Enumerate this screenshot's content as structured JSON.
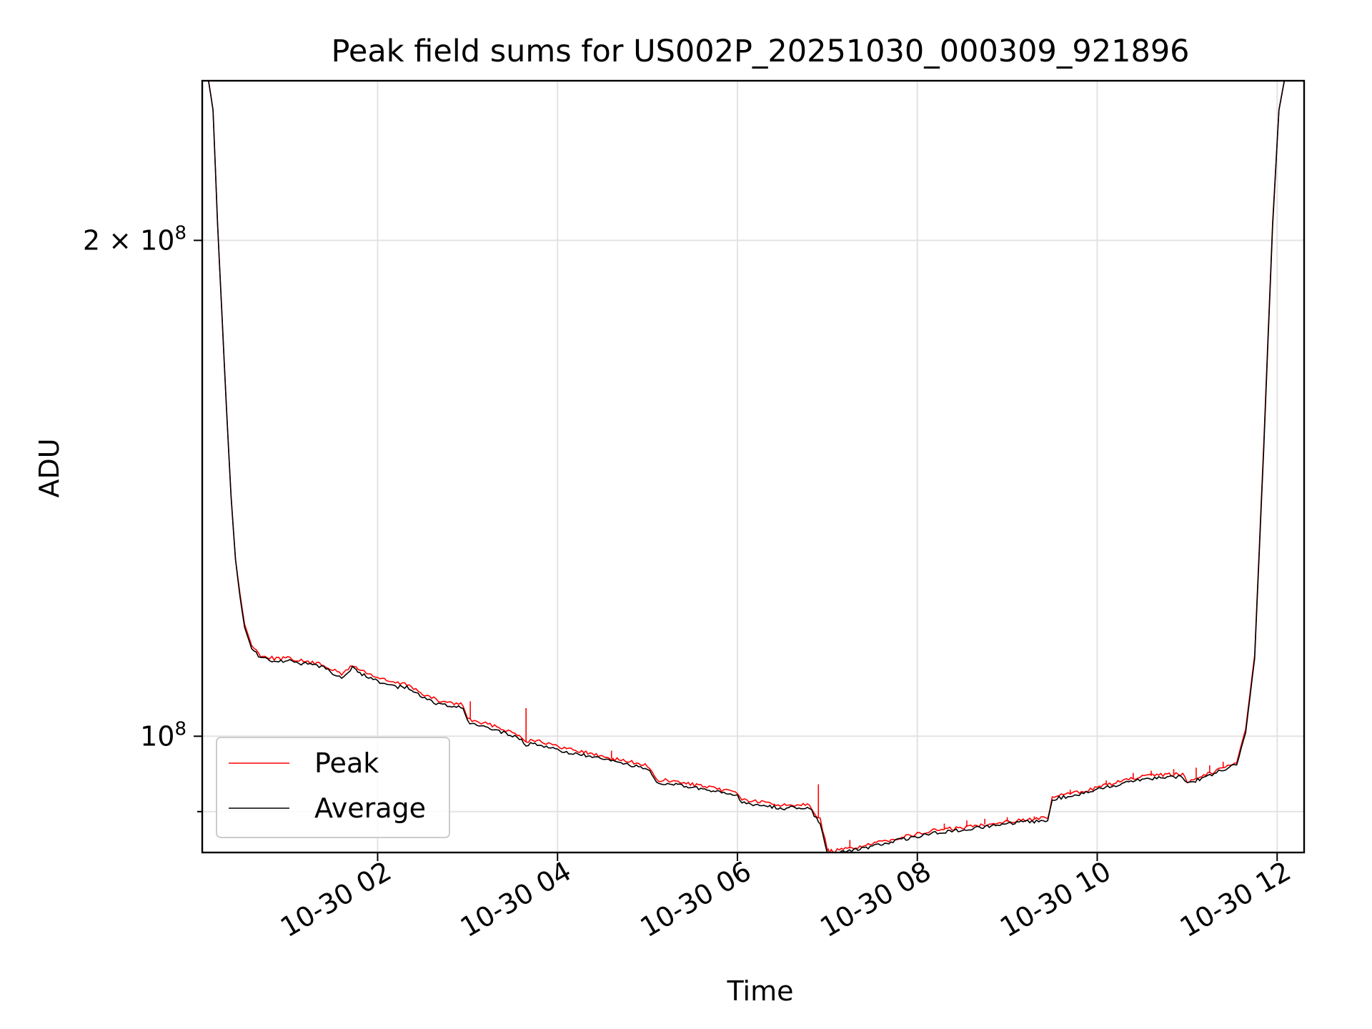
{
  "chart_data": {
    "type": "line",
    "title": "Peak field sums for US002P_20251030_000309_921896",
    "xlabel": "Time",
    "ylabel": "ADU",
    "yscale": "log",
    "xlim_hours": [
      0.05,
      12.3
    ],
    "ylim": [
      85000000,
      250000000
    ],
    "grid": true,
    "legend_position": "lower-left",
    "x_ticks": [
      {
        "hour": 2,
        "label": "10-30 02"
      },
      {
        "hour": 4,
        "label": "10-30 04"
      },
      {
        "hour": 6,
        "label": "10-30 06"
      },
      {
        "hour": 8,
        "label": "10-30 08"
      },
      {
        "hour": 10,
        "label": "10-30 10"
      },
      {
        "hour": 12,
        "label": "10-30 12"
      }
    ],
    "y_major_ticks": [
      {
        "value": 100000000,
        "base": "10",
        "exp": "8",
        "coef": ""
      },
      {
        "value": 200000000,
        "base": "10",
        "exp": "8",
        "coef": "2 × "
      }
    ],
    "y_minor_ticks": [
      90000000
    ],
    "series": [
      {
        "name": "Peak",
        "color": "#ff0000",
        "x_hours": [
          0.12,
          0.17,
          0.22,
          0.27,
          0.32,
          0.37,
          0.42,
          0.47,
          0.52,
          0.6,
          0.7,
          0.85,
          1.0,
          1.2,
          1.4,
          1.6,
          1.72,
          1.78,
          1.85,
          2.0,
          2.2,
          2.35,
          2.5,
          2.7,
          2.95,
          3.0,
          3.1,
          3.3,
          3.5,
          3.6,
          3.65,
          3.7,
          3.8,
          4.0,
          4.2,
          4.5,
          4.8,
          5.0,
          5.1,
          5.2,
          5.5,
          5.8,
          6.0,
          6.05,
          6.2,
          6.5,
          6.8,
          6.88,
          6.92,
          7.0,
          7.02,
          7.2,
          7.5,
          7.8,
          8.0,
          8.2,
          8.5,
          8.8,
          9.2,
          9.45,
          9.5,
          9.55,
          9.8,
          10.0,
          10.3,
          10.5,
          10.8,
          10.95,
          11.0,
          11.3,
          11.55,
          11.65,
          11.75,
          11.85,
          11.95,
          12.02,
          12.08,
          12.13
        ],
        "y": [
          250000000,
          240000000,
          205000000,
          180000000,
          158000000,
          140000000,
          128000000,
          122000000,
          117000000,
          113500000,
          112000000,
          111500000,
          111500000,
          111000000,
          110500000,
          109000000,
          110500000,
          109800000,
          109500000,
          108500000,
          107700000,
          107500000,
          106000000,
          105000000,
          104500000,
          102500000,
          102000000,
          101500000,
          100500000,
          100000000,
          99200000,
          99500000,
          99400000,
          98500000,
          98100000,
          97200000,
          96500000,
          96000000,
          94000000,
          94000000,
          93500000,
          92800000,
          92500000,
          91500000,
          91300000,
          90800000,
          91000000,
          89500000,
          89000000,
          85300000,
          85100000,
          85400000,
          86000000,
          86800000,
          87200000,
          87700000,
          88000000,
          88500000,
          89000000,
          89200000,
          91700000,
          92000000,
          92500000,
          93100000,
          94000000,
          94500000,
          94800000,
          94800000,
          93900000,
          95200000,
          96500000,
          101000000,
          112000000,
          150000000,
          205000000,
          240000000,
          250000000,
          250000000
        ]
      },
      {
        "name": "Average",
        "color": "#000000",
        "x_hours": [
          0.12,
          0.17,
          0.22,
          0.27,
          0.32,
          0.37,
          0.42,
          0.47,
          0.52,
          0.6,
          0.7,
          0.85,
          1.0,
          1.2,
          1.4,
          1.6,
          1.72,
          1.78,
          1.85,
          2.0,
          2.2,
          2.35,
          2.5,
          2.7,
          2.95,
          3.0,
          3.1,
          3.3,
          3.5,
          3.6,
          3.65,
          3.7,
          3.8,
          4.0,
          4.2,
          4.5,
          4.8,
          5.0,
          5.1,
          5.2,
          5.5,
          5.8,
          6.0,
          6.05,
          6.2,
          6.5,
          6.8,
          6.88,
          6.92,
          7.0,
          7.02,
          7.2,
          7.5,
          7.8,
          8.0,
          8.2,
          8.5,
          8.8,
          9.2,
          9.45,
          9.5,
          9.55,
          9.8,
          10.0,
          10.3,
          10.5,
          10.8,
          10.95,
          11.0,
          11.3,
          11.55,
          11.65,
          11.75,
          11.85,
          11.95,
          12.02,
          12.08,
          12.13
        ],
        "y": [
          250000000,
          240000000,
          205000000,
          180000000,
          158000000,
          140000000,
          128000000,
          121500000,
          116500000,
          113000000,
          111600000,
          111100000,
          111100000,
          110600000,
          110100000,
          108500000,
          110000000,
          109300000,
          109000000,
          108000000,
          107200000,
          107000000,
          105500000,
          104500000,
          104000000,
          102000000,
          101500000,
          101000000,
          100000000,
          99500000,
          98700000,
          99000000,
          98900000,
          98000000,
          97600000,
          96800000,
          96100000,
          95600000,
          93600000,
          93600000,
          93100000,
          92400000,
          92100000,
          91100000,
          90900000,
          90400000,
          90600000,
          89100000,
          88600000,
          85000000,
          84800000,
          85100000,
          85700000,
          86500000,
          86900000,
          87400000,
          87700000,
          88200000,
          88700000,
          88900000,
          91400000,
          91700000,
          92200000,
          92800000,
          93700000,
          94200000,
          94500000,
          94500000,
          93600000,
          94900000,
          96200000,
          100500000,
          111500000,
          149000000,
          204000000,
          240000000,
          250000000,
          250000000
        ]
      }
    ],
    "peak_spikes": [
      {
        "hour": 3.03,
        "y": 105000000
      },
      {
        "hour": 3.65,
        "y": 104000000
      },
      {
        "hour": 4.6,
        "y": 98000000
      },
      {
        "hour": 6.9,
        "y": 93500000
      },
      {
        "hour": 7.25,
        "y": 86500000
      },
      {
        "hour": 8.3,
        "y": 88500000
      },
      {
        "hour": 8.55,
        "y": 88900000
      },
      {
        "hour": 8.75,
        "y": 89100000
      },
      {
        "hour": 9.0,
        "y": 89300000
      },
      {
        "hour": 9.3,
        "y": 89400000
      },
      {
        "hour": 9.7,
        "y": 92800000
      },
      {
        "hour": 10.1,
        "y": 94000000
      },
      {
        "hour": 10.4,
        "y": 95000000
      },
      {
        "hour": 10.6,
        "y": 95300000
      },
      {
        "hour": 10.85,
        "y": 95500000
      },
      {
        "hour": 11.1,
        "y": 95700000
      },
      {
        "hour": 11.25,
        "y": 96000000
      },
      {
        "hour": 11.4,
        "y": 96500000
      }
    ]
  }
}
